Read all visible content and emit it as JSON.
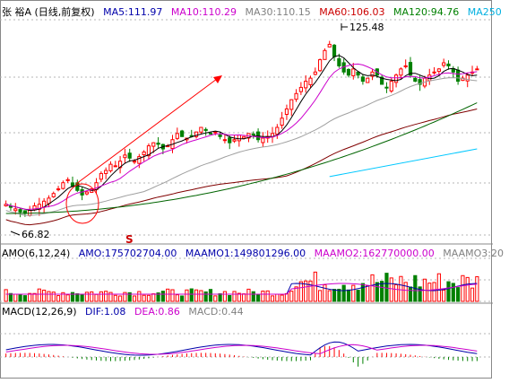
{
  "header_price": {
    "stock": "张 裕A (日线,前复权)",
    "ma5": "MA5:111.97",
    "ma10": "MA10:110.29",
    "ma30": "MA30:110.15",
    "ma60": "MA60:106.03",
    "ma120": "MA120:94.76",
    "ma250": "MA250"
  },
  "header_amo": {
    "title": "AMO(6,12,24)",
    "amo": "AMO:175702704.00",
    "maamo1": "MAAMO1:149801296.00",
    "maamo2": "MAAMO2:162770000.00",
    "maamo3": "MAAMO3:20"
  },
  "header_macd": {
    "title": "MACD(12,26,9)",
    "dif": "DIF:1.08",
    "dea": "DEA:0.86",
    "macd": "MACD:0.44"
  },
  "annotations": {
    "high_label": "125.48",
    "low_label": "66.82",
    "s_marker": "S"
  },
  "colors": {
    "up": "#ff0000",
    "down": "#008000",
    "ma5": "#000000",
    "ma10": "#cc00cc",
    "ma30": "#a0a0a0",
    "ma60": "#800000",
    "ma120": "#006400",
    "ma250": "#00c8ff",
    "grid": "#b4b4b4"
  },
  "chart_data": {
    "type": "candlestick",
    "price_range": [
      60,
      130
    ],
    "high": 125.48,
    "low": 66.82,
    "closes": [
      70,
      69,
      68.5,
      67.5,
      67,
      68,
      69.5,
      70,
      71,
      72,
      73.5,
      75,
      77,
      78,
      76,
      74.5,
      73,
      74,
      75,
      77,
      80,
      81,
      83,
      82.5,
      84,
      86,
      85,
      84,
      85.5,
      87,
      89,
      90,
      89.5,
      88,
      89,
      91,
      93,
      92,
      91.5,
      92,
      93.5,
      95,
      94,
      93,
      93.5,
      92,
      91,
      90,
      91,
      92.5,
      92,
      93,
      92.5,
      91,
      91.5,
      92,
      93,
      95,
      98,
      101,
      104,
      106,
      108,
      110,
      111,
      113,
      117,
      120,
      122,
      118,
      115,
      113,
      112,
      114,
      112,
      110,
      111,
      113,
      112,
      109,
      108,
      110,
      112,
      114,
      115,
      112,
      110,
      109,
      111,
      112,
      113,
      114,
      116,
      115,
      113,
      110,
      111,
      112,
      113,
      114
    ],
    "ma120_endpoints": [
      [
        0,
        67
      ],
      [
        99,
        103
      ]
    ],
    "ma250_endpoints": [
      [
        68,
        79
      ],
      [
        99,
        88
      ]
    ]
  }
}
